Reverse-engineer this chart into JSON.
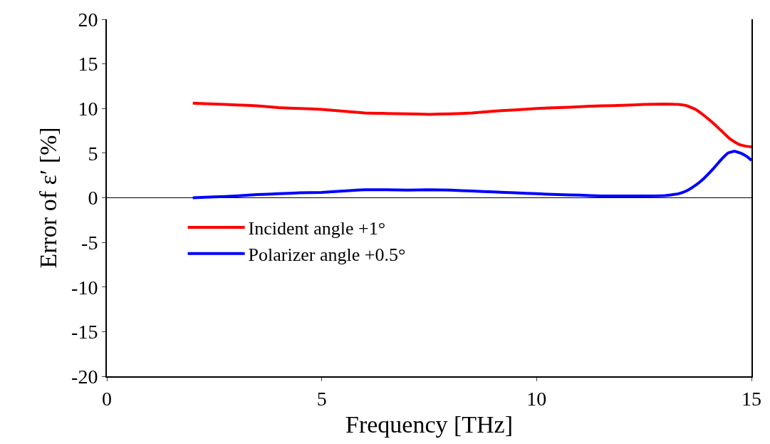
{
  "chart_data": {
    "type": "line",
    "xlabel": "Frequency [THz]",
    "ylabel": "Error of ε′ [%]",
    "xlim": [
      0,
      15
    ],
    "xticks": [
      0,
      5,
      10,
      15
    ],
    "ylim": [
      -20,
      20
    ],
    "yticks": [
      -20,
      -15,
      -10,
      -5,
      0,
      5,
      10,
      15,
      20
    ],
    "grid": false,
    "legend": "left",
    "marker": "none",
    "line_style": "solid",
    "ref_lines": [
      {
        "axis": "y",
        "value": 0,
        "color": "#000000"
      }
    ],
    "series": [
      {
        "name": "Incident angle +1°",
        "color": "#ff0000",
        "x": [
          2,
          2.5,
          3,
          3.5,
          4,
          4.5,
          5,
          5.5,
          6,
          6.5,
          7,
          7.5,
          8,
          8.5,
          9,
          9.5,
          10,
          10.5,
          11,
          11.5,
          12,
          12.5,
          13,
          13.3,
          13.5,
          13.7,
          13.9,
          14.1,
          14.3,
          14.5,
          14.7,
          14.85,
          15
        ],
        "values": [
          10.6,
          10.5,
          10.4,
          10.3,
          10.1,
          10.0,
          9.9,
          9.7,
          9.5,
          9.45,
          9.4,
          9.35,
          9.4,
          9.5,
          9.7,
          9.85,
          10.0,
          10.1,
          10.2,
          10.3,
          10.35,
          10.45,
          10.5,
          10.45,
          10.3,
          9.9,
          9.2,
          8.4,
          7.5,
          6.6,
          6.0,
          5.8,
          5.7
        ]
      },
      {
        "name": "Polarizer angle +0.5°",
        "color": "#0000ff",
        "x": [
          2,
          2.5,
          3,
          3.5,
          4,
          4.5,
          5,
          5.5,
          6,
          6.5,
          7,
          7.5,
          8,
          8.5,
          9,
          9.5,
          10,
          10.5,
          11,
          11.5,
          12,
          12.5,
          13,
          13.3,
          13.5,
          13.7,
          13.9,
          14.1,
          14.3,
          14.45,
          14.6,
          14.75,
          14.9,
          15
        ],
        "values": [
          0.0,
          0.1,
          0.2,
          0.35,
          0.45,
          0.55,
          0.6,
          0.75,
          0.9,
          0.9,
          0.85,
          0.9,
          0.85,
          0.75,
          0.65,
          0.55,
          0.45,
          0.35,
          0.3,
          0.2,
          0.2,
          0.2,
          0.25,
          0.45,
          0.8,
          1.4,
          2.2,
          3.2,
          4.3,
          5.0,
          5.2,
          5.0,
          4.6,
          4.2
        ]
      }
    ]
  }
}
